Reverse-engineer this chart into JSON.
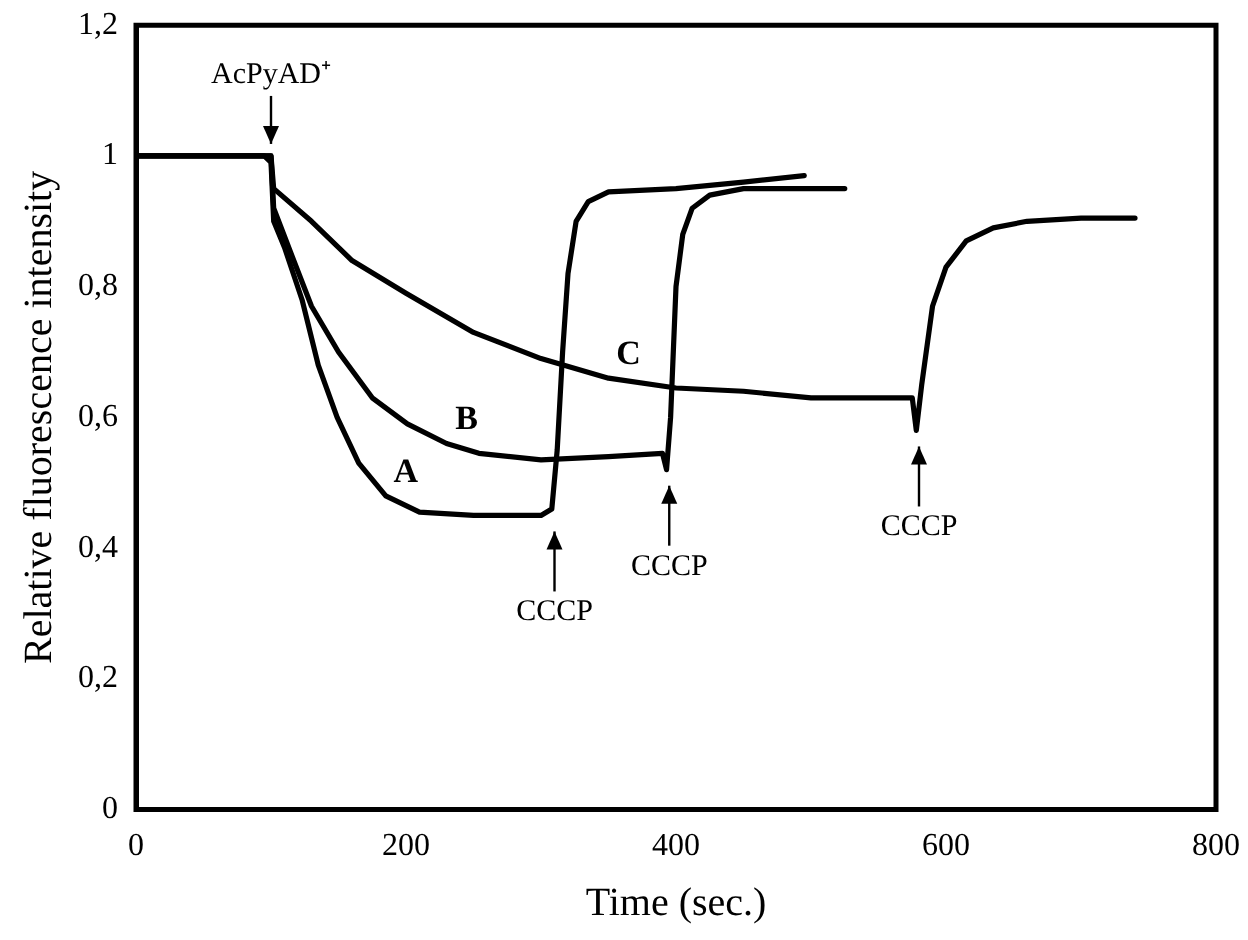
{
  "chart_data": {
    "type": "line",
    "xlabel": "Time (sec.)",
    "ylabel": "Relative fluorescence intensity",
    "xlim": [
      0,
      800
    ],
    "xticks": [
      0,
      200,
      400,
      600,
      800
    ],
    "ylim": [
      0,
      1.2
    ],
    "yticks": [
      0,
      {
        "value": 0.2,
        "label": "0,2"
      },
      {
        "value": 0.4,
        "label": "0,4"
      },
      {
        "value": 0.6,
        "label": "0,6"
      },
      {
        "value": 0.8,
        "label": "0,8"
      },
      1,
      {
        "value": 1.2,
        "label": "1,2"
      }
    ],
    "grid": false,
    "legend": false,
    "marker": "none",
    "line_style": "solid",
    "series": [
      {
        "name": "A",
        "color": "#000000",
        "x": [
          0,
          95,
          100,
          102,
          110,
          123,
          135,
          149,
          165,
          185,
          210,
          250,
          300,
          308,
          312,
          316,
          320,
          326,
          335,
          350,
          400,
          450,
          495
        ],
        "values": [
          1,
          1,
          0.99,
          0.9,
          0.86,
          0.78,
          0.68,
          0.6,
          0.53,
          0.48,
          0.455,
          0.45,
          0.45,
          0.46,
          0.55,
          0.7,
          0.82,
          0.9,
          0.93,
          0.945,
          0.95,
          0.96,
          0.97
        ]
      },
      {
        "name": "B",
        "color": "#000000",
        "x": [
          0,
          100,
          102,
          115,
          130,
          150,
          175,
          201,
          230,
          254,
          300,
          350,
          390,
          393,
          396,
          400,
          405,
          412,
          425,
          450,
          525
        ],
        "values": [
          1,
          1,
          0.92,
          0.85,
          0.77,
          0.7,
          0.63,
          0.59,
          0.56,
          0.545,
          0.535,
          0.54,
          0.545,
          0.52,
          0.6,
          0.8,
          0.88,
          0.92,
          0.94,
          0.95,
          0.95
        ]
      },
      {
        "name": "C",
        "color": "#000000",
        "x": [
          0,
          100,
          102,
          130,
          160,
          200,
          250,
          300,
          350,
          400,
          450,
          500,
          575,
          578,
          582,
          590,
          600,
          615,
          635,
          660,
          700,
          740
        ],
        "values": [
          1,
          1,
          0.95,
          0.9,
          0.84,
          0.79,
          0.73,
          0.69,
          0.66,
          0.645,
          0.64,
          0.63,
          0.63,
          0.58,
          0.65,
          0.77,
          0.83,
          0.87,
          0.89,
          0.9,
          0.905,
          0.905
        ]
      }
    ],
    "annotations": [
      {
        "text": "AcPyAD⁺",
        "x": 100,
        "y": 1
      },
      {
        "text": "CCCP",
        "x": 310,
        "y": 0.45
      },
      {
        "text": "CCCP",
        "x": 395,
        "y": 0.52
      },
      {
        "text": "CCCP",
        "x": 580,
        "y": 0.58
      }
    ]
  }
}
